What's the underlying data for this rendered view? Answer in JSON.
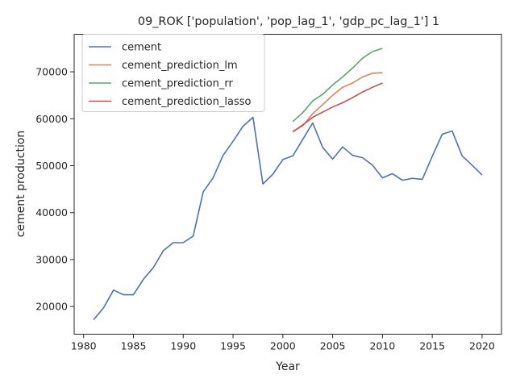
{
  "chart_data": {
    "type": "line",
    "title": "09_ROK ['population', 'pop_lag_1', 'gdp_pc_lag_1'] 1",
    "xlabel": "Year",
    "ylabel": "cement production",
    "xlim": [
      1979.05,
      2021.95
    ],
    "ylim": [
      14100,
      78000
    ],
    "xticks": [
      1980,
      1985,
      1990,
      1995,
      2000,
      2005,
      2010,
      2015,
      2020
    ],
    "yticks": [
      20000,
      30000,
      40000,
      50000,
      60000,
      70000
    ],
    "ytick_labels": [
      "20000",
      "30000",
      "40000",
      "50000",
      "60000",
      "70000"
    ],
    "grid": false,
    "legend": "top-left",
    "series": [
      {
        "name": "cement",
        "color": "#4c72b0",
        "x": [
          1981,
          1982,
          1983,
          1984,
          1985,
          1986,
          1987,
          1988,
          1989,
          1990,
          1991,
          1992,
          1993,
          1994,
          1995,
          1996,
          1997,
          1998,
          1999,
          2000,
          2001,
          2002,
          2003,
          2004,
          2005,
          2006,
          2007,
          2008,
          2009,
          2010,
          2011,
          2012,
          2013,
          2014,
          2015,
          2016,
          2017,
          2018,
          2019,
          2020
        ],
        "values": [
          17200,
          19700,
          23500,
          22500,
          22500,
          25800,
          28300,
          31900,
          33600,
          33600,
          35000,
          44400,
          47400,
          52200,
          55200,
          58400,
          60300,
          46100,
          48200,
          51300,
          52100,
          55600,
          59100,
          53900,
          51400,
          54000,
          52200,
          51700,
          50100,
          47400,
          48300,
          46900,
          47300,
          47100,
          52000,
          56700,
          57400,
          52100,
          50100,
          48000
        ]
      },
      {
        "name": "cement_prediction_lm",
        "color": "#dd8452",
        "x": [
          2001,
          2002,
          2003,
          2004,
          2005,
          2006,
          2007,
          2008,
          2009,
          2010
        ],
        "values": [
          57300,
          58500,
          61100,
          63000,
          65000,
          66700,
          67600,
          68900,
          69700,
          69800
        ]
      },
      {
        "name": "cement_prediction_rr",
        "color": "#55a868",
        "x": [
          2001,
          2002,
          2003,
          2004,
          2005,
          2006,
          2007,
          2008,
          2009,
          2010
        ],
        "values": [
          59400,
          61300,
          63800,
          65200,
          67200,
          68900,
          70800,
          72900,
          74300,
          75000
        ]
      },
      {
        "name": "cement_prediction_lasso",
        "color": "#c44e52",
        "x": [
          2001,
          2002,
          2003,
          2004,
          2005,
          2006,
          2007,
          2008,
          2009,
          2010
        ],
        "values": [
          57200,
          58700,
          60300,
          61400,
          62500,
          63400,
          64500,
          65700,
          66700,
          67600
        ]
      }
    ]
  }
}
